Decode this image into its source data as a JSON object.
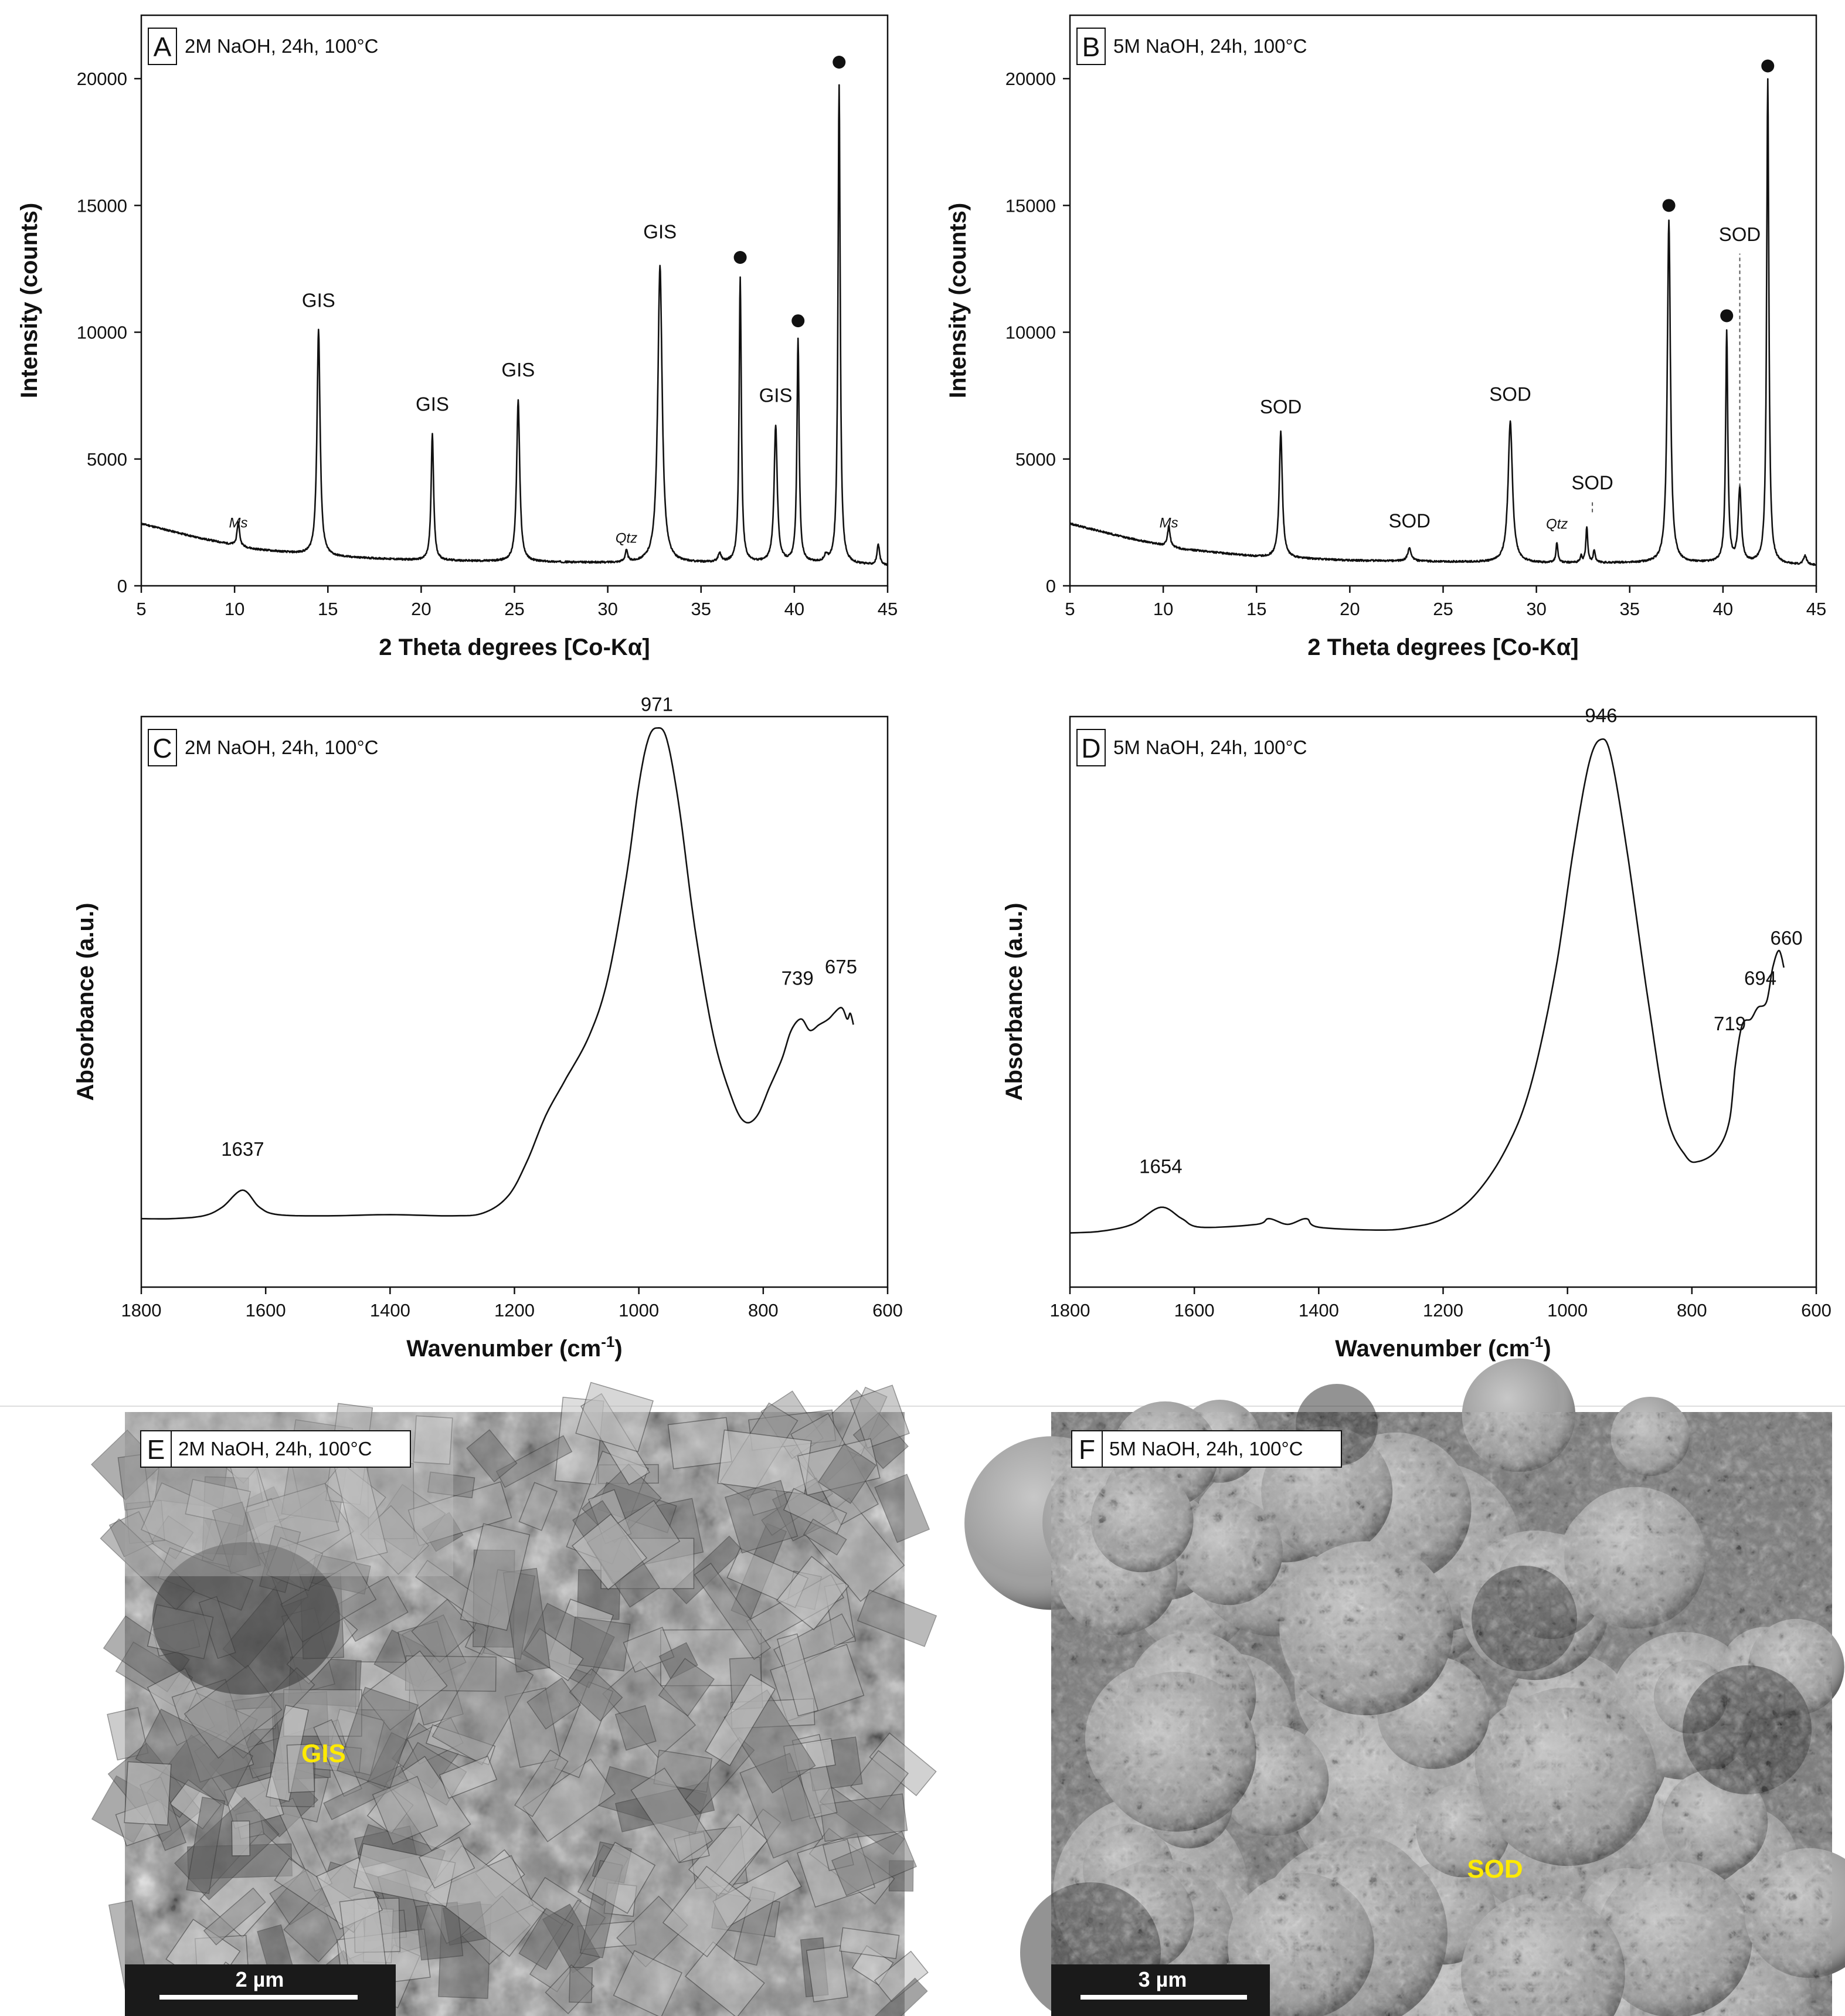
{
  "chart_data": [
    {
      "id": "A",
      "type": "line",
      "panel_letter": "A",
      "condition": "2M NaOH, 24h, 100°C",
      "xlabel": "2 Theta degrees [Co-Kα]",
      "ylabel": "Intensity (counts)",
      "xlim": [
        5,
        45
      ],
      "ylim": [
        0,
        22500
      ],
      "xticks": [
        5,
        10,
        15,
        20,
        25,
        30,
        35,
        40,
        45
      ],
      "yticks": [
        0,
        5000,
        10000,
        15000,
        20000
      ],
      "baseline": [
        [
          5,
          2450
        ],
        [
          8,
          1900
        ],
        [
          11,
          1450
        ],
        [
          15,
          1150
        ],
        [
          20,
          1000
        ],
        [
          25,
          950
        ],
        [
          30,
          900
        ],
        [
          35,
          900
        ],
        [
          40,
          900
        ],
        [
          45,
          800
        ]
      ],
      "peaks": [
        [
          10.2,
          950,
          0.08
        ],
        [
          14.5,
          8900,
          0.1
        ],
        [
          20.6,
          5000,
          0.08
        ],
        [
          25.2,
          6350,
          0.1
        ],
        [
          31.0,
          450,
          0.08
        ],
        [
          32.8,
          11700,
          0.14
        ],
        [
          36.0,
          350,
          0.1
        ],
        [
          37.1,
          11200,
          0.07
        ],
        [
          39.0,
          5400,
          0.1
        ],
        [
          40.2,
          8800,
          0.07
        ],
        [
          41.7,
          250,
          0.1
        ],
        [
          42.4,
          18900,
          0.07
        ],
        [
          44.5,
          800,
          0.08
        ]
      ],
      "annotations": [
        {
          "text": "Ms",
          "x": 10.2,
          "y": 2300,
          "italic": true
        },
        {
          "text": "GIS",
          "x": 14.5,
          "y": 11000
        },
        {
          "text": "GIS",
          "x": 20.6,
          "y": 6900
        },
        {
          "text": "GIS",
          "x": 25.2,
          "y": 8250
        },
        {
          "text": "Qtz",
          "x": 31.0,
          "y": 1700,
          "italic": true
        },
        {
          "text": "GIS",
          "x": 32.8,
          "y": 13700
        },
        {
          "text": "GIS",
          "x": 39.0,
          "y": 7250
        }
      ],
      "dots": [
        [
          37.1,
          12950
        ],
        [
          40.2,
          10450
        ],
        [
          42.4,
          20650
        ]
      ]
    },
    {
      "id": "B",
      "type": "line",
      "panel_letter": "B",
      "condition": "5M NaOH, 24h, 100°C",
      "xlabel": "2 Theta degrees [Co-Kα]",
      "ylabel": "Intensity (counts)",
      "xlim": [
        5,
        45
      ],
      "ylim": [
        0,
        22500
      ],
      "xticks": [
        5,
        10,
        15,
        20,
        25,
        30,
        35,
        40,
        45
      ],
      "yticks": [
        0,
        5000,
        10000,
        15000,
        20000
      ],
      "baseline": [
        [
          5,
          2450
        ],
        [
          8,
          1900
        ],
        [
          11,
          1450
        ],
        [
          15,
          1150
        ],
        [
          20,
          1000
        ],
        [
          25,
          950
        ],
        [
          30,
          900
        ],
        [
          35,
          900
        ],
        [
          40,
          900
        ],
        [
          45,
          800
        ]
      ],
      "peaks": [
        [
          10.3,
          800,
          0.08
        ],
        [
          16.3,
          4950,
          0.1
        ],
        [
          23.2,
          500,
          0.12
        ],
        [
          28.6,
          5550,
          0.14
        ],
        [
          31.1,
          800,
          0.06
        ],
        [
          32.4,
          250,
          0.06
        ],
        [
          32.7,
          1400,
          0.06
        ],
        [
          33.1,
          500,
          0.06
        ],
        [
          37.1,
          13500,
          0.1
        ],
        [
          40.2,
          9100,
          0.07
        ],
        [
          40.9,
          2900,
          0.1
        ],
        [
          42.4,
          19100,
          0.07
        ],
        [
          44.4,
          350,
          0.1
        ]
      ],
      "annotations": [
        {
          "text": "Ms",
          "x": 10.3,
          "y": 2300,
          "italic": true
        },
        {
          "text": "SOD",
          "x": 16.3,
          "y": 6800
        },
        {
          "text": "SOD",
          "x": 23.2,
          "y": 2300
        },
        {
          "text": "SOD",
          "x": 28.6,
          "y": 7300
        },
        {
          "text": "Qtz",
          "x": 31.1,
          "y": 2250,
          "italic": true
        },
        {
          "text": "SOD",
          "x": 33.0,
          "y": 3800
        },
        {
          "text": "SOD",
          "x": 40.9,
          "y": 13600
        }
      ],
      "dots": [
        [
          37.1,
          15000
        ],
        [
          40.2,
          10650
        ],
        [
          42.4,
          20500
        ]
      ],
      "dashed_markers": [
        {
          "x": 33.0,
          "y0": 2900,
          "y1": 3300
        },
        {
          "x": 40.9,
          "y0": 3900,
          "y1": 13100
        }
      ]
    },
    {
      "id": "C",
      "type": "line",
      "panel_letter": "C",
      "condition": "2M NaOH, 24h, 100°C",
      "xlabel": "Wavenumber (cm",
      "xlabel_sup": "-1",
      "xlabel_tail": ")",
      "ylabel": "Absorbance (a.u.)",
      "xlim": [
        1800,
        600
      ],
      "ylim": [
        0,
        1
      ],
      "xticks": [
        1800,
        1600,
        1400,
        1200,
        1000,
        800,
        600
      ],
      "curve": [
        [
          1800,
          0.12
        ],
        [
          1750,
          0.12
        ],
        [
          1700,
          0.125
        ],
        [
          1670,
          0.14
        ],
        [
          1637,
          0.17
        ],
        [
          1610,
          0.14
        ],
        [
          1580,
          0.127
        ],
        [
          1500,
          0.125
        ],
        [
          1400,
          0.127
        ],
        [
          1300,
          0.125
        ],
        [
          1250,
          0.13
        ],
        [
          1210,
          0.16
        ],
        [
          1180,
          0.22
        ],
        [
          1150,
          0.3
        ],
        [
          1120,
          0.36
        ],
        [
          1080,
          0.44
        ],
        [
          1050,
          0.54
        ],
        [
          1020,
          0.72
        ],
        [
          1000,
          0.88
        ],
        [
          985,
          0.96
        ],
        [
          971,
          0.98
        ],
        [
          955,
          0.96
        ],
        [
          935,
          0.84
        ],
        [
          910,
          0.63
        ],
        [
          880,
          0.44
        ],
        [
          850,
          0.33
        ],
        [
          830,
          0.29
        ],
        [
          810,
          0.3
        ],
        [
          790,
          0.35
        ],
        [
          770,
          0.4
        ],
        [
          755,
          0.45
        ],
        [
          739,
          0.47
        ],
        [
          725,
          0.45
        ],
        [
          710,
          0.46
        ],
        [
          695,
          0.47
        ],
        [
          675,
          0.49
        ],
        [
          665,
          0.47
        ],
        [
          660,
          0.48
        ],
        [
          655,
          0.46
        ]
      ],
      "annotations": [
        {
          "text": "1637",
          "x": 1637,
          "y": 0.23
        },
        {
          "text": "971",
          "x": 971,
          "y": 1.01
        },
        {
          "text": "739",
          "x": 745,
          "y": 0.53
        },
        {
          "text": "675",
          "x": 675,
          "y": 0.55
        }
      ]
    },
    {
      "id": "D",
      "type": "line",
      "panel_letter": "D",
      "condition": "5M NaOH, 24h, 100°C",
      "xlabel": "Wavenumber (cm",
      "xlabel_sup": "-1",
      "xlabel_tail": ")",
      "ylabel": "Absorbance (a.u.)",
      "xlim": [
        1800,
        600
      ],
      "ylim": [
        0,
        1
      ],
      "xticks": [
        1800,
        1600,
        1400,
        1200,
        1000,
        800,
        600
      ],
      "curve": [
        [
          1800,
          0.095
        ],
        [
          1750,
          0.098
        ],
        [
          1700,
          0.11
        ],
        [
          1654,
          0.14
        ],
        [
          1620,
          0.12
        ],
        [
          1590,
          0.105
        ],
        [
          1500,
          0.11
        ],
        [
          1480,
          0.12
        ],
        [
          1450,
          0.11
        ],
        [
          1420,
          0.12
        ],
        [
          1400,
          0.105
        ],
        [
          1300,
          0.1
        ],
        [
          1250,
          0.105
        ],
        [
          1200,
          0.12
        ],
        [
          1150,
          0.16
        ],
        [
          1100,
          0.24
        ],
        [
          1060,
          0.35
        ],
        [
          1020,
          0.55
        ],
        [
          990,
          0.77
        ],
        [
          965,
          0.92
        ],
        [
          946,
          0.96
        ],
        [
          930,
          0.93
        ],
        [
          905,
          0.77
        ],
        [
          870,
          0.5
        ],
        [
          840,
          0.3
        ],
        [
          810,
          0.23
        ],
        [
          790,
          0.22
        ],
        [
          760,
          0.24
        ],
        [
          740,
          0.29
        ],
        [
          730,
          0.39
        ],
        [
          719,
          0.46
        ],
        [
          705,
          0.47
        ],
        [
          694,
          0.49
        ],
        [
          680,
          0.5
        ],
        [
          670,
          0.56
        ],
        [
          660,
          0.59
        ],
        [
          652,
          0.56
        ]
      ],
      "annotations": [
        {
          "text": "1654",
          "x": 1654,
          "y": 0.2
        },
        {
          "text": "946",
          "x": 946,
          "y": 0.99
        },
        {
          "text": "719",
          "x": 739,
          "y": 0.45
        },
        {
          "text": "694",
          "x": 690,
          "y": 0.53
        },
        {
          "text": "660",
          "x": 648,
          "y": 0.6
        }
      ]
    }
  ],
  "images": {
    "E": {
      "panel_letter": "E",
      "condition": "2M NaOH, 24h, 100°C",
      "label": "GIS",
      "scale_bar": "2 µm",
      "texture": "angular-crystals"
    },
    "F": {
      "panel_letter": "F",
      "condition": "5M NaOH, 24h, 100°C",
      "label": "SOD",
      "scale_bar": "3 µm",
      "texture": "rosette-aggregates"
    }
  },
  "colors": {
    "line": "#111111",
    "sem_label": "#ffea00",
    "scale_bar_bg": "#1a1a1a"
  }
}
